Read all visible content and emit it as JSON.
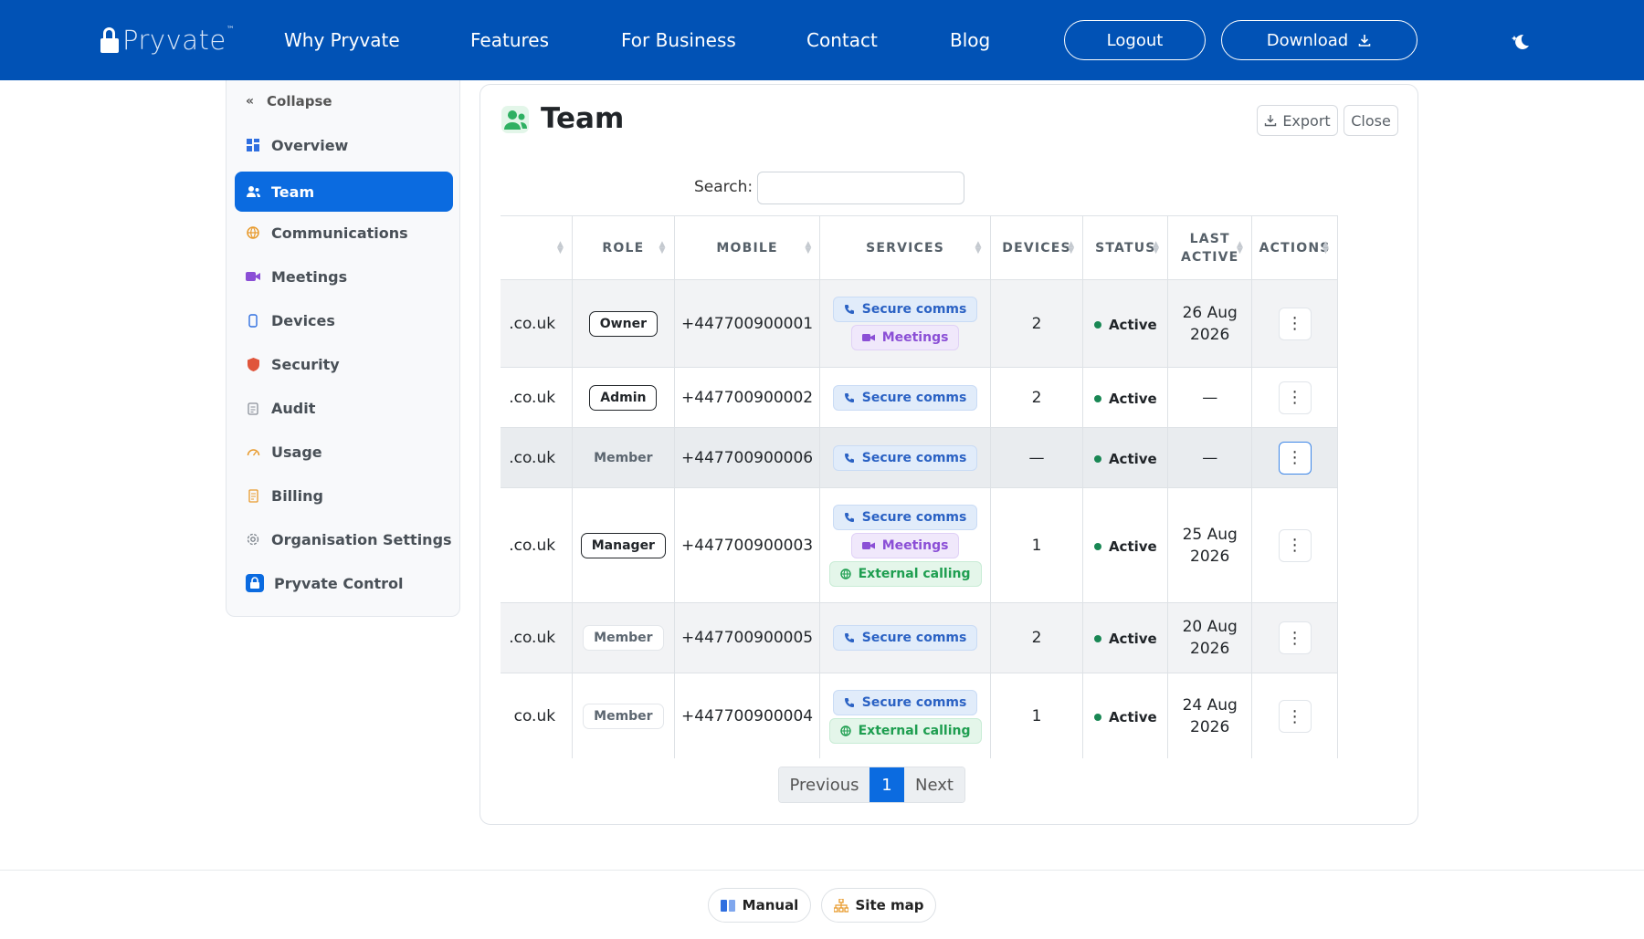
{
  "header": {
    "logo_text": "Pryvate",
    "logo_tm": "™",
    "nav": [
      "Why Pryvate",
      "Features",
      "For Business",
      "Contact",
      "Blog"
    ],
    "logout_label": "Logout",
    "download_label": "Download"
  },
  "sidebar": {
    "collapse_label": "Collapse",
    "items": [
      {
        "label": "Overview",
        "icon": "grid-icon"
      },
      {
        "label": "Team",
        "icon": "people-icon"
      },
      {
        "label": "Communications",
        "icon": "globe-icon"
      },
      {
        "label": "Meetings",
        "icon": "video-icon"
      },
      {
        "label": "Devices",
        "icon": "phone-icon"
      },
      {
        "label": "Security",
        "icon": "shield-icon"
      },
      {
        "label": "Audit",
        "icon": "clipboard-icon"
      },
      {
        "label": "Usage",
        "icon": "gauge-icon"
      },
      {
        "label": "Billing",
        "icon": "receipt-icon"
      },
      {
        "label": "Organisation Settings",
        "icon": "gear-icon"
      },
      {
        "label": "Pryvate Control",
        "icon": "lock-icon"
      }
    ]
  },
  "card": {
    "title": "Team",
    "export_label": "Export",
    "close_label": "Close",
    "search_label": "Search:",
    "search_value": ""
  },
  "table": {
    "columns": [
      "",
      "ROLE",
      "MOBILE",
      "SERVICES",
      "DEVICES",
      "STATUS",
      "LAST ACTIVE",
      "ACTIONS"
    ],
    "rows": [
      {
        "email": ".co.uk",
        "role": "Owner",
        "mobile": "+447700900001",
        "services": [
          "Secure comms",
          "Meetings"
        ],
        "devices": "2",
        "status": "Active",
        "last_active": "26 Aug 2026"
      },
      {
        "email": ".co.uk",
        "role": "Admin",
        "mobile": "+447700900002",
        "services": [
          "Secure comms"
        ],
        "devices": "2",
        "status": "Active",
        "last_active": "—"
      },
      {
        "email": ".co.uk",
        "role": "Member",
        "mobile": "+447700900006",
        "services": [
          "Secure comms"
        ],
        "devices": "—",
        "status": "Active",
        "last_active": "—"
      },
      {
        "email": ".co.uk",
        "role": "Manager",
        "mobile": "+447700900003",
        "services": [
          "Secure comms",
          "Meetings",
          "External calling"
        ],
        "devices": "1",
        "status": "Active",
        "last_active": "25 Aug 2026"
      },
      {
        "email": ".co.uk",
        "role": "Member",
        "mobile": "+447700900005",
        "services": [
          "Secure comms"
        ],
        "devices": "2",
        "status": "Active",
        "last_active": "20 Aug 2026"
      },
      {
        "email": "co.uk",
        "role": "Member",
        "mobile": "+447700900004",
        "services": [
          "Secure comms",
          "External calling"
        ],
        "devices": "1",
        "status": "Active",
        "last_active": "24 Aug 2026"
      }
    ],
    "actions_glyph": "⋮"
  },
  "pagination": {
    "previous": "Previous",
    "current": "1",
    "next": "Next"
  },
  "footer": {
    "manual_label": "Manual",
    "sitemap_label": "Site map"
  },
  "colors": {
    "brand": "#0152b5",
    "accent": "#0b6be0",
    "active_status": "#198754"
  }
}
